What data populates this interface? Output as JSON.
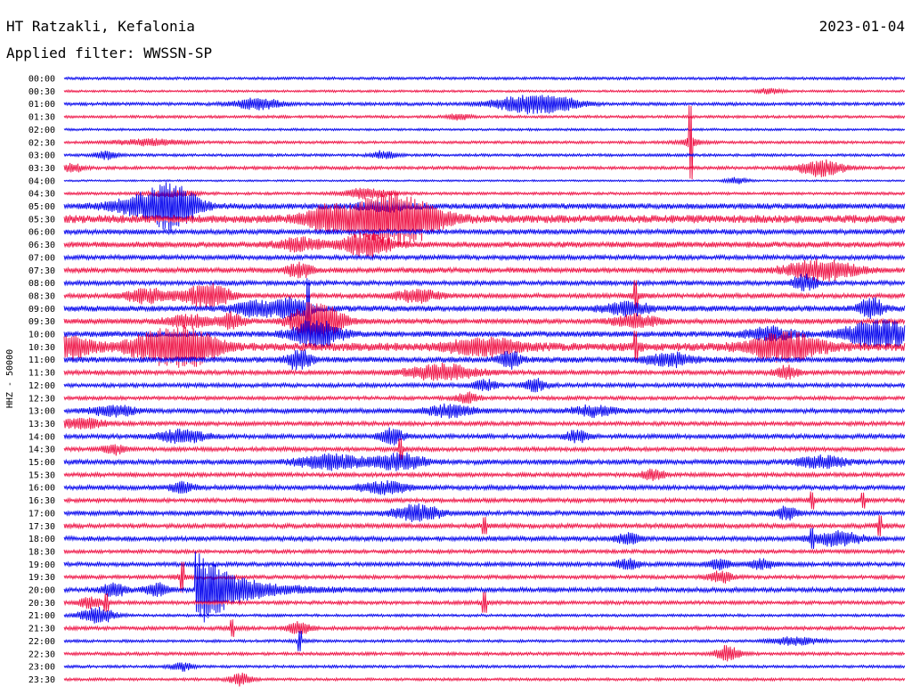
{
  "header": {
    "station": "HT Ratzakli, Kefalonia",
    "date": "2023-01-04",
    "filter": "Applied filter: WWSSN-SP"
  },
  "axis": {
    "ylabel": "HHZ - 50000"
  },
  "colors": {
    "blue": "#0000ee",
    "red": "#ee1144"
  },
  "chart_data": {
    "type": "line",
    "title": "HT Ratzakli, Kefalonia",
    "date": "2023-01-04",
    "filter": "WWSSN-SP",
    "ylabel": "HHZ - 50000",
    "rows": [
      {
        "label": "00:00",
        "color": "blue",
        "noise": 1.2,
        "events": []
      },
      {
        "label": "00:30",
        "color": "red",
        "noise": 1.0,
        "events": [
          {
            "t": 0.84,
            "amp": 3,
            "dur": 0.01
          }
        ]
      },
      {
        "label": "01:00",
        "color": "blue",
        "noise": 1.4,
        "events": [
          {
            "t": 0.23,
            "amp": 6,
            "dur": 0.02
          },
          {
            "t": 0.55,
            "amp": 8,
            "dur": 0.03
          },
          {
            "t": 0.59,
            "amp": 5,
            "dur": 0.02
          }
        ]
      },
      {
        "label": "01:30",
        "color": "red",
        "noise": 1.2,
        "events": [
          {
            "t": 0.47,
            "amp": 3,
            "dur": 0.01
          }
        ]
      },
      {
        "label": "02:00",
        "color": "blue",
        "noise": 1.0,
        "events": []
      },
      {
        "label": "02:30",
        "color": "red",
        "noise": 1.2,
        "events": [
          {
            "t": 0.1,
            "amp": 3,
            "dur": 0.03
          },
          {
            "t": 0.745,
            "amp": 40,
            "dur": 0.003,
            "spike": true
          }
        ]
      },
      {
        "label": "03:00",
        "color": "blue",
        "noise": 1.2,
        "events": [
          {
            "t": 0.05,
            "amp": 4,
            "dur": 0.01
          },
          {
            "t": 0.38,
            "amp": 4,
            "dur": 0.01
          }
        ]
      },
      {
        "label": "03:30",
        "color": "red",
        "noise": 1.4,
        "events": [
          {
            "t": 0.01,
            "amp": 4,
            "dur": 0.01
          },
          {
            "t": 0.9,
            "amp": 8,
            "dur": 0.02
          }
        ]
      },
      {
        "label": "04:00",
        "color": "blue",
        "noise": 0.8,
        "events": [
          {
            "t": 0.8,
            "amp": 3,
            "dur": 0.01
          }
        ]
      },
      {
        "label": "04:30",
        "color": "red",
        "noise": 1.2,
        "events": [
          {
            "t": 0.36,
            "amp": 5,
            "dur": 0.02
          },
          {
            "t": 0.13,
            "amp": 3,
            "dur": 0.02
          }
        ]
      },
      {
        "label": "05:00",
        "color": "blue",
        "noise": 2.5,
        "events": [
          {
            "t": 0.1,
            "amp": 10,
            "dur": 0.03
          },
          {
            "t": 0.13,
            "amp": 20,
            "dur": 0.02
          },
          {
            "t": 0.38,
            "amp": 5,
            "dur": 0.02
          }
        ]
      },
      {
        "label": "05:30",
        "color": "red",
        "noise": 3.5,
        "events": [
          {
            "t": 0.31,
            "amp": 10,
            "dur": 0.02
          },
          {
            "t": 0.37,
            "amp": 16,
            "dur": 0.03
          },
          {
            "t": 0.41,
            "amp": 18,
            "dur": 0.03
          }
        ]
      },
      {
        "label": "06:00",
        "color": "blue",
        "noise": 2.2,
        "events": []
      },
      {
        "label": "06:30",
        "color": "red",
        "noise": 2.5,
        "events": [
          {
            "t": 0.28,
            "amp": 6,
            "dur": 0.02
          },
          {
            "t": 0.36,
            "amp": 12,
            "dur": 0.02
          }
        ]
      },
      {
        "label": "07:00",
        "color": "blue",
        "noise": 2.0,
        "events": []
      },
      {
        "label": "07:30",
        "color": "red",
        "noise": 2.2,
        "events": [
          {
            "t": 0.28,
            "amp": 8,
            "dur": 0.01
          },
          {
            "t": 0.9,
            "amp": 10,
            "dur": 0.03
          }
        ]
      },
      {
        "label": "08:00",
        "color": "blue",
        "noise": 2.0,
        "events": [
          {
            "t": 0.88,
            "amp": 8,
            "dur": 0.01
          }
        ]
      },
      {
        "label": "08:30",
        "color": "red",
        "noise": 2.0,
        "events": [
          {
            "t": 0.1,
            "amp": 7,
            "dur": 0.02
          },
          {
            "t": 0.17,
            "amp": 12,
            "dur": 0.02
          },
          {
            "t": 0.42,
            "amp": 6,
            "dur": 0.02
          },
          {
            "t": 0.68,
            "amp": 16,
            "dur": 0.003,
            "spike": true
          }
        ]
      },
      {
        "label": "09:00",
        "color": "blue",
        "noise": 2.5,
        "events": [
          {
            "t": 0.23,
            "amp": 8,
            "dur": 0.02
          },
          {
            "t": 0.27,
            "amp": 10,
            "dur": 0.01
          },
          {
            "t": 0.29,
            "amp": 30,
            "dur": 0.004,
            "spike": true
          },
          {
            "t": 0.67,
            "amp": 6,
            "dur": 0.02
          },
          {
            "t": 0.96,
            "amp": 10,
            "dur": 0.01
          }
        ]
      },
      {
        "label": "09:30",
        "color": "red",
        "noise": 2.2,
        "events": [
          {
            "t": 0.15,
            "amp": 6,
            "dur": 0.02
          },
          {
            "t": 0.2,
            "amp": 8,
            "dur": 0.01
          },
          {
            "t": 0.3,
            "amp": 22,
            "dur": 0.02
          },
          {
            "t": 0.68,
            "amp": 6,
            "dur": 0.02
          }
        ]
      },
      {
        "label": "10:00",
        "color": "blue",
        "noise": 2.5,
        "events": [
          {
            "t": 0.3,
            "amp": 14,
            "dur": 0.02
          },
          {
            "t": 0.84,
            "amp": 6,
            "dur": 0.02
          },
          {
            "t": 0.97,
            "amp": 14,
            "dur": 0.03
          }
        ]
      },
      {
        "label": "10:30",
        "color": "red",
        "noise": 3.5,
        "events": [
          {
            "t": 0.01,
            "amp": 10,
            "dur": 0.02
          },
          {
            "t": 0.12,
            "amp": 16,
            "dur": 0.03
          },
          {
            "t": 0.16,
            "amp": 10,
            "dur": 0.02
          },
          {
            "t": 0.5,
            "amp": 8,
            "dur": 0.03
          },
          {
            "t": 0.68,
            "amp": 14,
            "dur": 0.003,
            "spike": true
          },
          {
            "t": 0.86,
            "amp": 14,
            "dur": 0.03
          }
        ]
      },
      {
        "label": "11:00",
        "color": "blue",
        "noise": 2.5,
        "events": [
          {
            "t": 0.28,
            "amp": 10,
            "dur": 0.01
          },
          {
            "t": 0.53,
            "amp": 8,
            "dur": 0.01
          },
          {
            "t": 0.72,
            "amp": 6,
            "dur": 0.02
          }
        ]
      },
      {
        "label": "11:30",
        "color": "red",
        "noise": 2.0,
        "events": [
          {
            "t": 0.45,
            "amp": 8,
            "dur": 0.03
          },
          {
            "t": 0.86,
            "amp": 6,
            "dur": 0.01
          }
        ]
      },
      {
        "label": "12:00",
        "color": "blue",
        "noise": 1.8,
        "events": [
          {
            "t": 0.5,
            "amp": 5,
            "dur": 0.01
          },
          {
            "t": 0.56,
            "amp": 6,
            "dur": 0.01
          }
        ]
      },
      {
        "label": "12:30",
        "color": "red",
        "noise": 1.6,
        "events": [
          {
            "t": 0.48,
            "amp": 5,
            "dur": 0.01
          }
        ]
      },
      {
        "label": "13:00",
        "color": "blue",
        "noise": 2.0,
        "events": [
          {
            "t": 0.06,
            "amp": 5,
            "dur": 0.02
          },
          {
            "t": 0.46,
            "amp": 6,
            "dur": 0.02
          },
          {
            "t": 0.63,
            "amp": 5,
            "dur": 0.02
          }
        ]
      },
      {
        "label": "13:30",
        "color": "red",
        "noise": 1.8,
        "events": [
          {
            "t": 0.02,
            "amp": 5,
            "dur": 0.02
          }
        ]
      },
      {
        "label": "14:00",
        "color": "blue",
        "noise": 2.0,
        "events": [
          {
            "t": 0.14,
            "amp": 7,
            "dur": 0.02
          },
          {
            "t": 0.39,
            "amp": 7,
            "dur": 0.01
          },
          {
            "t": 0.61,
            "amp": 6,
            "dur": 0.01
          }
        ]
      },
      {
        "label": "14:30",
        "color": "red",
        "noise": 1.8,
        "events": [
          {
            "t": 0.06,
            "amp": 5,
            "dur": 0.01
          },
          {
            "t": 0.4,
            "amp": 10,
            "dur": 0.003,
            "spike": true
          }
        ]
      },
      {
        "label": "15:00",
        "color": "blue",
        "noise": 2.2,
        "events": [
          {
            "t": 0.32,
            "amp": 7,
            "dur": 0.03
          },
          {
            "t": 0.4,
            "amp": 8,
            "dur": 0.02
          },
          {
            "t": 0.9,
            "amp": 6,
            "dur": 0.02
          }
        ]
      },
      {
        "label": "15:30",
        "color": "red",
        "noise": 1.8,
        "events": [
          {
            "t": 0.7,
            "amp": 5,
            "dur": 0.01
          }
        ]
      },
      {
        "label": "16:00",
        "color": "blue",
        "noise": 2.0,
        "events": [
          {
            "t": 0.14,
            "amp": 5,
            "dur": 0.01
          },
          {
            "t": 0.38,
            "amp": 6,
            "dur": 0.02
          }
        ]
      },
      {
        "label": "16:30",
        "color": "red",
        "noise": 1.8,
        "events": [
          {
            "t": 0.89,
            "amp": 8,
            "dur": 0.003,
            "spike": true
          },
          {
            "t": 0.95,
            "amp": 7,
            "dur": 0.003,
            "spike": true
          }
        ]
      },
      {
        "label": "17:00",
        "color": "blue",
        "noise": 2.0,
        "events": [
          {
            "t": 0.42,
            "amp": 8,
            "dur": 0.02
          },
          {
            "t": 0.86,
            "amp": 6,
            "dur": 0.01
          }
        ]
      },
      {
        "label": "17:30",
        "color": "red",
        "noise": 2.0,
        "events": [
          {
            "t": 0.5,
            "amp": 8,
            "dur": 0.003,
            "spike": true
          },
          {
            "t": 0.97,
            "amp": 10,
            "dur": 0.003,
            "spike": true
          }
        ]
      },
      {
        "label": "18:00",
        "color": "blue",
        "noise": 2.0,
        "events": [
          {
            "t": 0.67,
            "amp": 6,
            "dur": 0.01
          },
          {
            "t": 0.89,
            "amp": 8,
            "dur": 0.003,
            "spike": true
          },
          {
            "t": 0.92,
            "amp": 7,
            "dur": 0.02
          }
        ]
      },
      {
        "label": "18:30",
        "color": "red",
        "noise": 1.6,
        "events": []
      },
      {
        "label": "19:00",
        "color": "blue",
        "noise": 1.8,
        "events": [
          {
            "t": 0.67,
            "amp": 5,
            "dur": 0.01
          },
          {
            "t": 0.78,
            "amp": 5,
            "dur": 0.01
          },
          {
            "t": 0.83,
            "amp": 5,
            "dur": 0.01
          }
        ]
      },
      {
        "label": "19:30",
        "color": "red",
        "noise": 1.6,
        "events": [
          {
            "t": 0.14,
            "amp": 16,
            "dur": 0.003,
            "spike": true
          },
          {
            "t": 0.78,
            "amp": 6,
            "dur": 0.01
          }
        ]
      },
      {
        "label": "20:00",
        "color": "blue",
        "noise": 2.0,
        "events": [
          {
            "t": 0.06,
            "amp": 7,
            "dur": 0.01
          },
          {
            "t": 0.11,
            "amp": 6,
            "dur": 0.01
          },
          {
            "t": 0.155,
            "amp": 42,
            "dur": 0.045,
            "quake": true
          }
        ]
      },
      {
        "label": "20:30",
        "color": "red",
        "noise": 1.6,
        "events": [
          {
            "t": 0.03,
            "amp": 5,
            "dur": 0.01
          },
          {
            "t": 0.05,
            "amp": 8,
            "dur": 0.003,
            "spike": true
          },
          {
            "t": 0.5,
            "amp": 10,
            "dur": 0.003,
            "spike": true
          }
        ]
      },
      {
        "label": "21:00",
        "color": "blue",
        "noise": 1.2,
        "events": [
          {
            "t": 0.04,
            "amp": 8,
            "dur": 0.015
          }
        ]
      },
      {
        "label": "21:30",
        "color": "red",
        "noise": 1.6,
        "events": [
          {
            "t": 0.2,
            "amp": 8,
            "dur": 0.003,
            "spike": true
          },
          {
            "t": 0.28,
            "amp": 6,
            "dur": 0.01
          }
        ]
      },
      {
        "label": "22:00",
        "color": "blue",
        "noise": 1.2,
        "events": [
          {
            "t": 0.28,
            "amp": 10,
            "dur": 0.003,
            "spike": true
          },
          {
            "t": 0.87,
            "amp": 4,
            "dur": 0.02
          }
        ]
      },
      {
        "label": "22:30",
        "color": "red",
        "noise": 1.4,
        "events": [
          {
            "t": 0.79,
            "amp": 8,
            "dur": 0.01
          }
        ]
      },
      {
        "label": "23:00",
        "color": "blue",
        "noise": 1.2,
        "events": [
          {
            "t": 0.14,
            "amp": 4,
            "dur": 0.01
          }
        ]
      },
      {
        "label": "23:30",
        "color": "red",
        "noise": 1.2,
        "events": [
          {
            "t": 0.21,
            "amp": 6,
            "dur": 0.01
          }
        ]
      }
    ]
  }
}
